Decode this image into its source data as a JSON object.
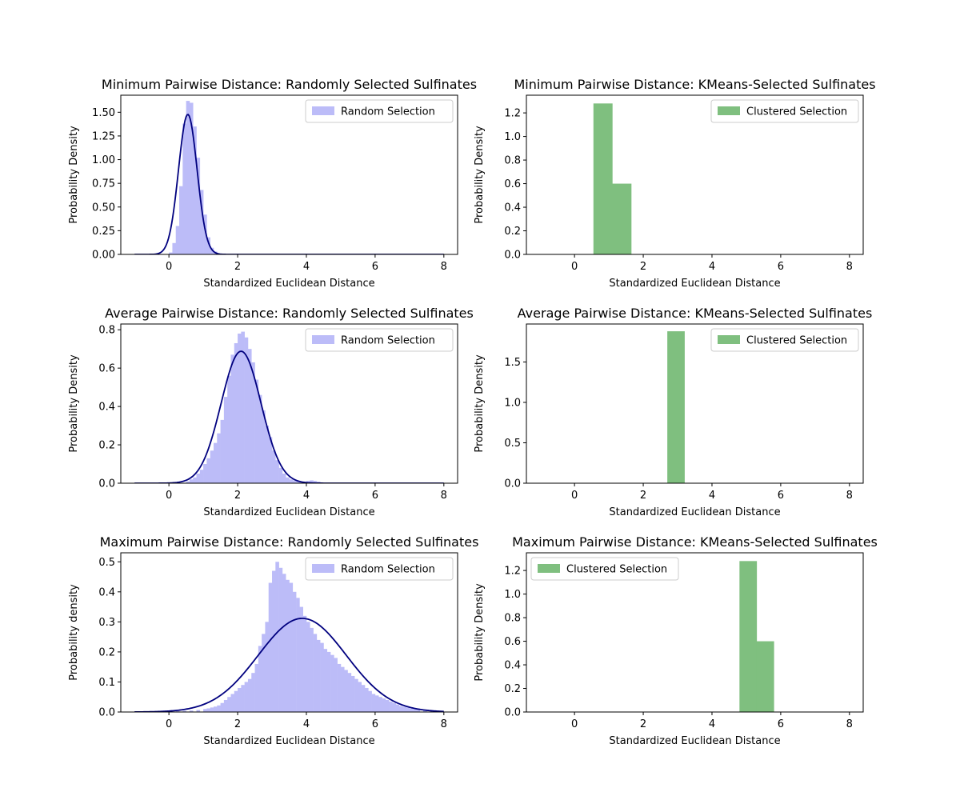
{
  "chart_data": [
    {
      "type": "bar",
      "title": "Minimum Pairwise Distance: Randomly Selected Sulfinates",
      "xlabel": "Standardized Euclidean Distance",
      "ylabel": "Probability Density",
      "xlim": [
        -1.4,
        8.4
      ],
      "ylim": [
        0,
        1.68
      ],
      "xticks": [
        0,
        2,
        4,
        6,
        8
      ],
      "yticks": [
        0.0,
        0.25,
        0.5,
        0.75,
        1.0,
        1.25,
        1.5
      ],
      "ytick_labels": [
        "0.00",
        "0.25",
        "0.50",
        "0.75",
        "1.00",
        "1.25",
        "1.50"
      ],
      "legend": "top-right",
      "series": [
        {
          "name": "Random Selection",
          "kind": "hist",
          "color": "#bcbcf8",
          "bins": [
            [
              0.0,
              0.02
            ],
            [
              0.1,
              0.12
            ],
            [
              0.2,
              0.3
            ],
            [
              0.3,
              0.72
            ],
            [
              0.4,
              1.38
            ],
            [
              0.5,
              1.62
            ],
            [
              0.6,
              1.6
            ],
            [
              0.7,
              1.35
            ],
            [
              0.8,
              1.02
            ],
            [
              0.9,
              0.68
            ],
            [
              1.0,
              0.42
            ],
            [
              1.1,
              0.18
            ],
            [
              1.2,
              0.07
            ],
            [
              1.3,
              0.03
            ],
            [
              1.4,
              0.01
            ]
          ],
          "bin_width": 0.1
        },
        {
          "kind": "normal_curve",
          "color": "#00007f",
          "mean": 0.55,
          "std": 0.27,
          "x_range": [
            -1,
            8
          ]
        }
      ]
    },
    {
      "type": "bar",
      "title": "Minimum Pairwise Distance: KMeans-Selected Sulfinates",
      "xlabel": "Standardized Euclidean Distance",
      "ylabel": "Probability Density",
      "xlim": [
        -1.4,
        8.4
      ],
      "ylim": [
        0,
        1.35
      ],
      "xticks": [
        0,
        2,
        4,
        6,
        8
      ],
      "yticks": [
        0.0,
        0.2,
        0.4,
        0.6,
        0.8,
        1.0,
        1.2
      ],
      "ytick_labels": [
        "0.0",
        "0.2",
        "0.4",
        "0.6",
        "0.8",
        "1.0",
        "1.2"
      ],
      "legend": "top-right",
      "series": [
        {
          "name": "Clustered Selection",
          "kind": "hist",
          "color": "#7fbf7f",
          "bins": [
            [
              0.55,
              1.28
            ],
            [
              1.1,
              0.6
            ]
          ],
          "bin_width": 0.55
        }
      ]
    },
    {
      "type": "bar",
      "title": "Average Pairwise Distance: Randomly Selected Sulfinates",
      "xlabel": "Standardized Euclidean Distance",
      "ylabel": "Probability Density",
      "xlim": [
        -1.4,
        8.4
      ],
      "ylim": [
        0,
        0.83
      ],
      "xticks": [
        0,
        2,
        4,
        6,
        8
      ],
      "yticks": [
        0.0,
        0.2,
        0.4,
        0.6,
        0.8
      ],
      "ytick_labels": [
        "0.0",
        "0.2",
        "0.4",
        "0.6",
        "0.8"
      ],
      "legend": "top-right",
      "series": [
        {
          "name": "Random Selection",
          "kind": "hist",
          "color": "#bcbcf8",
          "bins": [
            [
              0.5,
              0.01
            ],
            [
              0.6,
              0.02
            ],
            [
              0.7,
              0.03
            ],
            [
              0.8,
              0.05
            ],
            [
              0.9,
              0.07
            ],
            [
              1.0,
              0.1
            ],
            [
              1.1,
              0.13
            ],
            [
              1.2,
              0.17
            ],
            [
              1.3,
              0.21
            ],
            [
              1.4,
              0.26
            ],
            [
              1.5,
              0.33
            ],
            [
              1.6,
              0.45
            ],
            [
              1.7,
              0.56
            ],
            [
              1.8,
              0.67
            ],
            [
              1.9,
              0.73
            ],
            [
              2.0,
              0.78
            ],
            [
              2.1,
              0.79
            ],
            [
              2.2,
              0.76
            ],
            [
              2.3,
              0.7
            ],
            [
              2.4,
              0.63
            ],
            [
              2.5,
              0.54
            ],
            [
              2.6,
              0.46
            ],
            [
              2.7,
              0.38
            ],
            [
              2.8,
              0.3
            ],
            [
              2.9,
              0.24
            ],
            [
              3.0,
              0.17
            ],
            [
              3.1,
              0.12
            ],
            [
              3.2,
              0.08
            ],
            [
              3.3,
              0.05
            ],
            [
              3.4,
              0.03
            ],
            [
              3.5,
              0.02
            ],
            [
              3.6,
              0.015
            ],
            [
              3.7,
              0.01
            ],
            [
              3.8,
              0.008
            ],
            [
              3.9,
              0.008
            ],
            [
              4.0,
              0.012
            ],
            [
              4.1,
              0.015
            ],
            [
              4.2,
              0.012
            ],
            [
              4.3,
              0.008
            ],
            [
              4.4,
              0.004
            ]
          ],
          "bin_width": 0.1
        },
        {
          "kind": "normal_curve",
          "color": "#00007f",
          "mean": 2.1,
          "std": 0.58,
          "x_range": [
            -1,
            8
          ]
        }
      ]
    },
    {
      "type": "bar",
      "title": "Average Pairwise Distance: KMeans-Selected Sulfinates",
      "xlabel": "Standardized Euclidean Distance",
      "ylabel": "Probability Density",
      "xlim": [
        -1.4,
        8.4
      ],
      "ylim": [
        0,
        1.97
      ],
      "xticks": [
        0,
        2,
        4,
        6,
        8
      ],
      "yticks": [
        0.0,
        0.5,
        1.0,
        1.5
      ],
      "ytick_labels": [
        "0.0",
        "0.5",
        "1.0",
        "1.5"
      ],
      "legend": "top-right",
      "series": [
        {
          "name": "Clustered Selection",
          "kind": "hist",
          "color": "#7fbf7f",
          "bins": [
            [
              2.7,
              1.88
            ]
          ],
          "bin_width": 0.5
        }
      ]
    },
    {
      "type": "bar",
      "title": "Maximum Pairwise Distance: Randomly Selected Sulfinates",
      "xlabel": "Standardized Euclidean Distance",
      "ylabel": "Probability density",
      "xlim": [
        -1.4,
        8.4
      ],
      "ylim": [
        0,
        0.53
      ],
      "xticks": [
        0,
        2,
        4,
        6,
        8
      ],
      "yticks": [
        0.0,
        0.1,
        0.2,
        0.3,
        0.4,
        0.5
      ],
      "ytick_labels": [
        "0.0",
        "0.1",
        "0.2",
        "0.3",
        "0.4",
        "0.5"
      ],
      "legend": "top-right",
      "series": [
        {
          "name": "Random Selection",
          "kind": "hist",
          "color": "#bcbcf8",
          "bins": [
            [
              0.0,
              0.002
            ],
            [
              0.2,
              0.003
            ],
            [
              0.4,
              0.004
            ],
            [
              0.6,
              0.005
            ],
            [
              0.8,
              0.007
            ],
            [
              1.0,
              0.01
            ],
            [
              1.1,
              0.012
            ],
            [
              1.2,
              0.015
            ],
            [
              1.3,
              0.018
            ],
            [
              1.4,
              0.022
            ],
            [
              1.5,
              0.03
            ],
            [
              1.6,
              0.04
            ],
            [
              1.7,
              0.05
            ],
            [
              1.8,
              0.06
            ],
            [
              1.9,
              0.07
            ],
            [
              2.0,
              0.08
            ],
            [
              2.1,
              0.09
            ],
            [
              2.2,
              0.1
            ],
            [
              2.3,
              0.11
            ],
            [
              2.4,
              0.13
            ],
            [
              2.5,
              0.16
            ],
            [
              2.6,
              0.22
            ],
            [
              2.7,
              0.26
            ],
            [
              2.8,
              0.3
            ],
            [
              2.9,
              0.43
            ],
            [
              3.0,
              0.47
            ],
            [
              3.1,
              0.5
            ],
            [
              3.2,
              0.48
            ],
            [
              3.3,
              0.46
            ],
            [
              3.4,
              0.44
            ],
            [
              3.5,
              0.43
            ],
            [
              3.6,
              0.4
            ],
            [
              3.7,
              0.38
            ],
            [
              3.8,
              0.35
            ],
            [
              3.9,
              0.32
            ],
            [
              4.0,
              0.3
            ],
            [
              4.1,
              0.28
            ],
            [
              4.2,
              0.26
            ],
            [
              4.3,
              0.24
            ],
            [
              4.4,
              0.23
            ],
            [
              4.5,
              0.21
            ],
            [
              4.6,
              0.2
            ],
            [
              4.7,
              0.19
            ],
            [
              4.8,
              0.18
            ],
            [
              4.9,
              0.16
            ],
            [
              5.0,
              0.15
            ],
            [
              5.1,
              0.14
            ],
            [
              5.2,
              0.13
            ],
            [
              5.3,
              0.12
            ],
            [
              5.4,
              0.11
            ],
            [
              5.5,
              0.1
            ],
            [
              5.6,
              0.09
            ],
            [
              5.7,
              0.08
            ],
            [
              5.8,
              0.07
            ],
            [
              5.9,
              0.06
            ],
            [
              6.0,
              0.055
            ],
            [
              6.1,
              0.05
            ],
            [
              6.2,
              0.045
            ],
            [
              6.3,
              0.04
            ],
            [
              6.4,
              0.035
            ],
            [
              6.5,
              0.03
            ],
            [
              6.6,
              0.025
            ],
            [
              6.7,
              0.02
            ],
            [
              6.8,
              0.017
            ],
            [
              6.9,
              0.015
            ],
            [
              7.0,
              0.012
            ],
            [
              7.1,
              0.01
            ],
            [
              7.2,
              0.008
            ],
            [
              7.4,
              0.006
            ],
            [
              7.6,
              0.004
            ],
            [
              7.8,
              0.003
            ]
          ],
          "bin_width": 0.1
        },
        {
          "kind": "normal_curve",
          "color": "#00007f",
          "mean": 3.88,
          "std": 1.28,
          "x_range": [
            -1,
            8
          ]
        }
      ]
    },
    {
      "type": "bar",
      "title": "Maximum Pairwise Distance: KMeans-Selected Sulfinates",
      "xlabel": "Standardized Euclidean Distance",
      "ylabel": "Probability Density",
      "xlim": [
        -1.4,
        8.4
      ],
      "ylim": [
        0,
        1.35
      ],
      "xticks": [
        0,
        2,
        4,
        6,
        8
      ],
      "yticks": [
        0.0,
        0.2,
        0.4,
        0.6,
        0.8,
        1.0,
        1.2
      ],
      "ytick_labels": [
        "0.0",
        "0.2",
        "0.4",
        "0.6",
        "0.8",
        "1.0",
        "1.2"
      ],
      "legend": "top-left",
      "series": [
        {
          "name": "Clustered Selection",
          "kind": "hist",
          "color": "#7fbf7f",
          "bins": [
            [
              4.8,
              1.28
            ],
            [
              5.3,
              0.6
            ]
          ],
          "bin_width": 0.5
        }
      ]
    }
  ]
}
